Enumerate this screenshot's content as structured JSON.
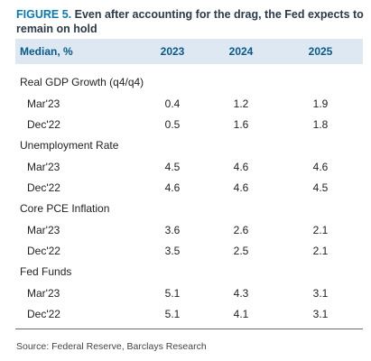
{
  "figure": {
    "label": "FIGURE 5.",
    "title": "Even after accounting for the drag, the Fed expects to remain on hold"
  },
  "table": {
    "header_label": "Median, %",
    "columns": [
      "2023",
      "2024",
      "2025"
    ],
    "sections": [
      {
        "name": "Real GDP Growth (q4/q4)",
        "rows": [
          {
            "label": "Mar'23",
            "values": [
              "0.4",
              "1.2",
              "1.9"
            ]
          },
          {
            "label": "Dec'22",
            "values": [
              "0.5",
              "1.6",
              "1.8"
            ]
          }
        ]
      },
      {
        "name": "Unemployment Rate",
        "rows": [
          {
            "label": "Mar'23",
            "values": [
              "4.5",
              "4.6",
              "4.6"
            ]
          },
          {
            "label": "Dec'22",
            "values": [
              "4.6",
              "4.6",
              "4.5"
            ]
          }
        ]
      },
      {
        "name": "Core PCE Inflation",
        "rows": [
          {
            "label": "Mar'23",
            "values": [
              "3.6",
              "2.6",
              "2.1"
            ]
          },
          {
            "label": "Dec'22",
            "values": [
              "3.5",
              "2.5",
              "2.1"
            ]
          }
        ]
      },
      {
        "name": "Fed Funds",
        "rows": [
          {
            "label": "Mar'23",
            "values": [
              "5.1",
              "4.3",
              "3.1"
            ]
          },
          {
            "label": "Dec'22",
            "values": [
              "5.1",
              "4.1",
              "3.1"
            ]
          }
        ]
      }
    ]
  },
  "source": "Source: Federal Reserve, Barclays Research"
}
